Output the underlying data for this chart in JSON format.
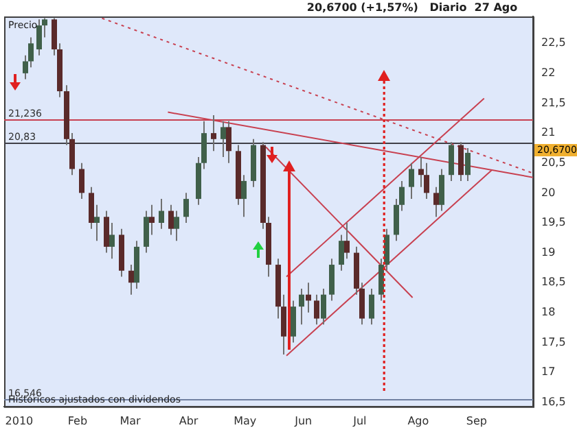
{
  "chart_data": {
    "type": "candlestick",
    "title": "20,6700 (+1,57%)   Diario  27 Ago",
    "annotations": [
      "Precio",
      "Históricos ajustados con dividendos",
      "20,6700"
    ],
    "x": [
      "2010-01-04",
      "2010-01-07",
      "2010-01-11",
      "2010-01-14",
      "2010-01-19",
      "2010-01-22",
      "2010-01-26",
      "2010-01-29",
      "2010-02-03",
      "2010-02-08",
      "2010-02-11",
      "2010-02-16",
      "2010-02-19",
      "2010-02-24",
      "2010-03-01",
      "2010-03-04",
      "2010-03-09",
      "2010-03-12",
      "2010-03-17",
      "2010-03-22",
      "2010-03-25",
      "2010-03-30",
      "2010-04-06",
      "2010-04-09",
      "2010-04-14",
      "2010-04-19",
      "2010-04-22",
      "2010-04-27",
      "2010-04-30",
      "2010-05-05",
      "2010-05-10",
      "2010-05-13",
      "2010-05-18",
      "2010-05-21",
      "2010-05-26",
      "2010-05-31",
      "2010-06-03",
      "2010-06-08",
      "2010-06-11",
      "2010-06-16",
      "2010-06-21",
      "2010-06-24",
      "2010-06-29",
      "2010-07-02",
      "2010-07-07",
      "2010-07-12",
      "2010-07-15",
      "2010-07-20",
      "2010-07-23",
      "2010-07-28",
      "2010-08-02",
      "2010-08-05",
      "2010-08-10",
      "2010-08-13",
      "2010-08-18",
      "2010-08-23",
      "2010-08-27"
    ],
    "ohlc": [
      [
        22.0,
        22.3,
        21.9,
        22.2
      ],
      [
        22.2,
        22.6,
        22.1,
        22.5
      ],
      [
        22.4,
        22.9,
        22.3,
        22.8
      ],
      [
        22.8,
        22.92,
        22.6,
        22.9
      ],
      [
        22.9,
        22.92,
        22.3,
        22.4
      ],
      [
        22.4,
        22.5,
        21.6,
        21.7
      ],
      [
        21.7,
        21.8,
        20.8,
        20.9
      ],
      [
        20.9,
        21.0,
        20.3,
        20.4
      ],
      [
        20.4,
        20.5,
        19.9,
        20.0
      ],
      [
        20.0,
        20.1,
        19.4,
        19.5
      ],
      [
        19.5,
        19.8,
        19.2,
        19.6
      ],
      [
        19.6,
        19.7,
        19.0,
        19.1
      ],
      [
        19.1,
        19.5,
        18.9,
        19.3
      ],
      [
        19.3,
        19.4,
        18.6,
        18.7
      ],
      [
        18.7,
        18.8,
        18.3,
        18.5
      ],
      [
        18.5,
        19.2,
        18.4,
        19.1
      ],
      [
        19.1,
        19.7,
        19.0,
        19.6
      ],
      [
        19.6,
        19.8,
        19.3,
        19.5
      ],
      [
        19.5,
        19.9,
        19.4,
        19.7
      ],
      [
        19.7,
        19.8,
        19.3,
        19.4
      ],
      [
        19.4,
        19.7,
        19.2,
        19.6
      ],
      [
        19.6,
        20.0,
        19.5,
        19.9
      ],
      [
        19.9,
        20.6,
        19.8,
        20.5
      ],
      [
        20.5,
        21.2,
        20.4,
        21.0
      ],
      [
        21.0,
        21.3,
        20.7,
        20.9
      ],
      [
        20.9,
        21.2,
        20.6,
        21.1
      ],
      [
        21.1,
        21.2,
        20.5,
        20.7
      ],
      [
        20.7,
        20.8,
        19.8,
        19.9
      ],
      [
        19.9,
        20.3,
        19.6,
        20.2
      ],
      [
        20.2,
        20.9,
        20.1,
        20.8
      ],
      [
        20.8,
        20.85,
        19.4,
        19.5
      ],
      [
        19.5,
        19.6,
        18.6,
        18.8
      ],
      [
        18.8,
        18.9,
        17.9,
        18.1
      ],
      [
        18.1,
        18.3,
        17.3,
        17.6
      ],
      [
        17.6,
        18.2,
        17.5,
        18.1
      ],
      [
        18.1,
        18.4,
        17.8,
        18.3
      ],
      [
        18.3,
        18.5,
        18.0,
        18.2
      ],
      [
        18.2,
        18.3,
        17.8,
        17.9
      ],
      [
        17.9,
        18.4,
        17.8,
        18.3
      ],
      [
        18.3,
        18.9,
        18.2,
        18.8
      ],
      [
        18.8,
        19.3,
        18.7,
        19.2
      ],
      [
        19.2,
        19.5,
        18.9,
        19.0
      ],
      [
        19.0,
        19.1,
        18.3,
        18.4
      ],
      [
        18.4,
        18.5,
        17.8,
        17.9
      ],
      [
        17.9,
        18.4,
        17.8,
        18.3
      ],
      [
        18.3,
        18.9,
        18.2,
        18.8
      ],
      [
        18.8,
        19.4,
        18.7,
        19.3
      ],
      [
        19.3,
        19.9,
        19.2,
        19.8
      ],
      [
        19.8,
        20.2,
        19.7,
        20.1
      ],
      [
        20.1,
        20.5,
        19.9,
        20.4
      ],
      [
        20.4,
        20.6,
        20.1,
        20.3
      ],
      [
        20.3,
        20.5,
        19.9,
        20.0
      ],
      [
        20.0,
        20.1,
        19.6,
        19.8
      ],
      [
        19.8,
        20.4,
        19.7,
        20.3
      ],
      [
        20.3,
        20.85,
        20.2,
        20.8
      ],
      [
        20.8,
        20.85,
        20.2,
        20.3
      ],
      [
        20.3,
        20.75,
        20.2,
        20.67
      ]
    ],
    "series": [
      {
        "type": "line",
        "color": "#c84050",
        "line_style": "dotted",
        "x": [
          "2010-02-14",
          "2010-10-01"
        ],
        "values": [
          22.92,
          20.33
        ]
      },
      {
        "type": "line",
        "color": "#c84050",
        "line_style": "solid",
        "x": [
          "2010-03-21",
          "2010-10-01"
        ],
        "values": [
          21.35,
          20.26
        ]
      },
      {
        "type": "line",
        "color": "#c84050",
        "line_style": "solid",
        "x": [
          "2010-05-23",
          "2010-09-09"
        ],
        "values": [
          17.28,
          20.38
        ]
      },
      {
        "type": "line",
        "color": "#c84050",
        "line_style": "solid",
        "x": [
          "2010-05-23",
          "2010-09-05"
        ],
        "values": [
          18.6,
          21.58
        ]
      },
      {
        "type": "line",
        "color": "#c84050",
        "line_style": "solid",
        "x": [
          "2010-05-12",
          "2010-07-29"
        ],
        "values": [
          20.77,
          18.25
        ]
      }
    ],
    "ref_lines": [
      {
        "axis": "y",
        "value": 21.236,
        "label": "21,236",
        "color": "#c84050"
      },
      {
        "axis": "y",
        "value": 20.83,
        "label": "20,83",
        "color": "#404048"
      },
      {
        "axis": "y",
        "value": 16.546,
        "label": "16,546",
        "color": "#7080a0"
      }
    ],
    "xlim": [
      "2009-12-24",
      "2010-10-01"
    ],
    "xticks": [
      {
        "value": "2010-01-01",
        "label": "2010"
      },
      {
        "value": "2010-02-01",
        "label": "Feb"
      },
      {
        "value": "2010-03-01",
        "label": "Mar"
      },
      {
        "value": "2010-04-01",
        "label": "Abr"
      },
      {
        "value": "2010-05-01",
        "label": "May"
      },
      {
        "value": "2010-06-01",
        "label": "Jun"
      },
      {
        "value": "2010-07-01",
        "label": "Jul"
      },
      {
        "value": "2010-08-01",
        "label": "Ago"
      },
      {
        "value": "2010-09-01",
        "label": "Sep"
      }
    ],
    "ylim": [
      16.43,
      22.95
    ],
    "yticks": [
      {
        "value": 16.5,
        "label": "16,5"
      },
      17,
      {
        "value": 17.5,
        "label": "17,5"
      },
      18,
      {
        "value": 18.5,
        "label": "18,5"
      },
      19,
      {
        "value": 19.5,
        "label": "19,5"
      },
      20,
      {
        "value": 20.5,
        "label": "20,5"
      },
      21,
      {
        "value": 21.5,
        "label": "21,5"
      },
      22,
      {
        "value": 22.5,
        "label": "22,5"
      }
    ],
    "grid": false,
    "legend": false
  }
}
